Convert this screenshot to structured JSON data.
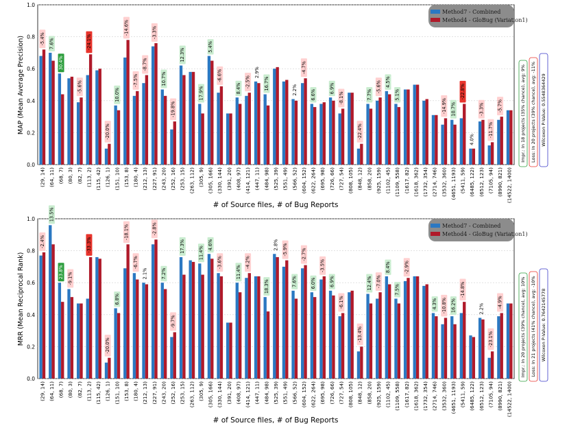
{
  "colors": {
    "method7": "#2b78c2",
    "method4": "#b01a2a",
    "pos_box": "#c9eccf",
    "pos_strong": "#2e9e3e",
    "neg_box": "#ffd0d0",
    "neg_strong": "#e8342c",
    "legend_bg": "#8c8c8c"
  },
  "xlabel": "# of Source files, # of Bug Reports",
  "legend": {
    "method7": "Method7 - Combined",
    "method4": "Method4 - GloBug (Variation1)"
  },
  "chart_data": [
    {
      "type": "bar",
      "ylabel": "MAP (Mean Average Precision)",
      "xlabel": "# of Source files, # of Bug Reports",
      "ylim": [
        0,
        1.0
      ],
      "yticks": [
        "0.0",
        "0.2",
        "0.4",
        "0.6",
        "0.8",
        "1.0"
      ],
      "categories": [
        "(29, 14)",
        "(64, 11)",
        "(68, 7)",
        "(80, 3)",
        "(82, 7)",
        "(113, 2)",
        "(115, 42)",
        "(126, 1)",
        "(151, 10)",
        "(153, 8)",
        "(180, 4)",
        "(212, 13)",
        "(227, 91)",
        "(243, 20)",
        "(252, 16)",
        "(253, 15)",
        "(263, 112)",
        "(305, 9)",
        "(305, 166)",
        "(330, 144)",
        "(391, 20)",
        "(408, 97)",
        "(414, 121)",
        "(447, 11)",
        "(484, 98)",
        "(525, 39)",
        "(551, 49)",
        "(566, 52)",
        "(604, 152)",
        "(622, 264)",
        "(695, 98)",
        "(726, 66)",
        "(727, 54)",
        "(808, 105)",
        "(848, 12)",
        "(858, 20)",
        "(925, 159)",
        "(1102, 45)",
        "(1109, 558)",
        "(1617, 82)",
        "(1618, 362)",
        "(1732, 354)",
        "(2714, 746)",
        "(3532, 360)",
        "(4651, 1193)",
        "(5411, 59)",
        "(6485, 122)",
        "(6512, 123)",
        "(7105, 94)",
        "(8990, 821)",
        "(14522, 1400)"
      ],
      "series": [
        {
          "name": "Method7 - Combined",
          "values": [
            0.68,
            0.7,
            0.57,
            0.54,
            0.39,
            0.56,
            0.59,
            0.1,
            0.37,
            0.67,
            0.43,
            0.51,
            0.74,
            0.47,
            0.22,
            0.62,
            0.58,
            0.38,
            0.68,
            0.45,
            0.32,
            0.42,
            0.43,
            0.52,
            0.44,
            0.6,
            0.52,
            0.41,
            0.51,
            0.38,
            0.38,
            0.42,
            0.32,
            0.45,
            0.1,
            0.38,
            0.4,
            0.46,
            0.38,
            0.47,
            0.5,
            0.4,
            0.31,
            0.25,
            0.28,
            0.29,
            0.1,
            0.27,
            0.12,
            0.28,
            0.34
          ]
        },
        {
          "name": "Method4 - GloBug (Variation1)",
          "values": [
            0.72,
            0.65,
            0.44,
            0.55,
            0.42,
            0.69,
            0.6,
            0.13,
            0.34,
            0.78,
            0.46,
            0.56,
            0.76,
            0.43,
            0.27,
            0.56,
            0.58,
            0.32,
            0.65,
            0.49,
            0.32,
            0.38,
            0.45,
            0.51,
            0.37,
            0.61,
            0.53,
            0.4,
            0.54,
            0.36,
            0.39,
            0.4,
            0.35,
            0.45,
            0.13,
            0.35,
            0.42,
            0.44,
            0.36,
            0.47,
            0.5,
            0.41,
            0.31,
            0.29,
            0.25,
            0.38,
            0.1,
            0.28,
            0.14,
            0.3,
            0.34
          ]
        }
      ],
      "annotations": [
        {
          "index": 0,
          "label": "-5.4%",
          "kind": "neg"
        },
        {
          "index": 1,
          "label": "7.6%",
          "kind": "pos"
        },
        {
          "index": 2,
          "label": "30.4%",
          "kind": "pos_strong"
        },
        {
          "index": 4,
          "label": "-5.6%",
          "kind": "neg"
        },
        {
          "index": 5,
          "label": "-24.1%",
          "kind": "neg_strong"
        },
        {
          "index": 7,
          "label": "-20.0%",
          "kind": "neg"
        },
        {
          "index": 8,
          "label": "10.0%",
          "kind": "pos"
        },
        {
          "index": 9,
          "label": "-14.6%",
          "kind": "neg"
        },
        {
          "index": 10,
          "label": "-7.5%",
          "kind": "neg"
        },
        {
          "index": 11,
          "label": "-8.7%",
          "kind": "neg"
        },
        {
          "index": 12,
          "label": "-3.3%",
          "kind": "neg"
        },
        {
          "index": 13,
          "label": "10.7%",
          "kind": "pos"
        },
        {
          "index": 14,
          "label": "-19.8%",
          "kind": "neg"
        },
        {
          "index": 15,
          "label": "12.3%",
          "kind": "pos"
        },
        {
          "index": 17,
          "label": "17.9%",
          "kind": "pos"
        },
        {
          "index": 18,
          "label": "5.4%",
          "kind": "pos"
        },
        {
          "index": 19,
          "label": "-6.6%",
          "kind": "neg"
        },
        {
          "index": 21,
          "label": "8.4%",
          "kind": "pos"
        },
        {
          "index": 22,
          "label": "-2.5%",
          "kind": "neg"
        },
        {
          "index": 23,
          "label": "2.9%",
          "kind": "plain"
        },
        {
          "index": 24,
          "label": "16.7%",
          "kind": "pos"
        },
        {
          "index": 27,
          "label": "2.2%",
          "kind": "plain"
        },
        {
          "index": 28,
          "label": "-4.7%",
          "kind": "neg"
        },
        {
          "index": 29,
          "label": "6.6%",
          "kind": "pos"
        },
        {
          "index": 31,
          "label": "6.9%",
          "kind": "pos"
        },
        {
          "index": 32,
          "label": "-8.1%",
          "kind": "neg"
        },
        {
          "index": 34,
          "label": "-22.4%",
          "kind": "neg"
        },
        {
          "index": 35,
          "label": "7.7%",
          "kind": "pos"
        },
        {
          "index": 36,
          "label": "-5.6%",
          "kind": "neg"
        },
        {
          "index": 37,
          "label": "4.5%",
          "kind": "pos"
        },
        {
          "index": 38,
          "label": "5.1%",
          "kind": "pos"
        },
        {
          "index": 43,
          "label": "-14.9%",
          "kind": "neg"
        },
        {
          "index": 44,
          "label": "10.7%",
          "kind": "pos"
        },
        {
          "index": 45,
          "label": "-22.8%",
          "kind": "neg_strong"
        },
        {
          "index": 46,
          "label": "4.0%",
          "kind": "plain"
        },
        {
          "index": 47,
          "label": "-3.3%",
          "kind": "neg"
        },
        {
          "index": 48,
          "label": "-11.7%",
          "kind": "neg"
        },
        {
          "index": 49,
          "label": "-5.7%",
          "kind": "neg"
        }
      ],
      "stats": {
        "impr": "Impr.: In 18 projects (35% chance), avg: 9%",
        "loss": "Loss: In 20 projects (39% chance), avg: -11%",
        "pvalue": "Wilcoxon P-Value: 0.5548364429"
      }
    },
    {
      "type": "bar",
      "ylabel": "MRR (Mean Reciprocal Rank)",
      "xlabel": "# of Source files, # of Bug Reports",
      "ylim": [
        0,
        1.0
      ],
      "yticks": [
        "0.0",
        "0.2",
        "0.4",
        "0.6",
        "0.8",
        "1.0"
      ],
      "categories": [
        "(29, 14)",
        "(64, 11)",
        "(68, 7)",
        "(80, 3)",
        "(82, 7)",
        "(113, 2)",
        "(115, 42)",
        "(126, 1)",
        "(151, 10)",
        "(153, 8)",
        "(180, 4)",
        "(212, 13)",
        "(227, 91)",
        "(243, 20)",
        "(252, 16)",
        "(253, 15)",
        "(263, 112)",
        "(305, 9)",
        "(305, 166)",
        "(330, 144)",
        "(391, 20)",
        "(408, 97)",
        "(414, 121)",
        "(447, 11)",
        "(484, 98)",
        "(525, 39)",
        "(551, 49)",
        "(566, 52)",
        "(604, 152)",
        "(622, 264)",
        "(695, 98)",
        "(726, 66)",
        "(727, 54)",
        "(808, 105)",
        "(848, 12)",
        "(858, 20)",
        "(925, 159)",
        "(1102, 45)",
        "(1109, 558)",
        "(1617, 82)",
        "(1618, 362)",
        "(1732, 354)",
        "(2714, 746)",
        "(3532, 360)",
        "(4651, 1193)",
        "(5411, 59)",
        "(6485, 122)",
        "(6512, 123)",
        "(7105, 94)",
        "(8990, 821)",
        "(14522, 1400)"
      ],
      "series": [
        {
          "name": "Method7 - Combined",
          "values": [
            0.77,
            0.96,
            0.6,
            0.56,
            0.47,
            0.5,
            0.76,
            0.1,
            0.44,
            0.69,
            0.66,
            0.6,
            0.84,
            0.6,
            0.26,
            0.76,
            0.74,
            0.72,
            0.78,
            0.66,
            0.35,
            0.6,
            0.63,
            0.64,
            0.51,
            0.78,
            0.7,
            0.55,
            0.69,
            0.54,
            0.62,
            0.55,
            0.39,
            0.54,
            0.17,
            0.53,
            0.5,
            0.64,
            0.5,
            0.61,
            0.64,
            0.58,
            0.41,
            0.34,
            0.39,
            0.41,
            0.27,
            0.38,
            0.13,
            0.39,
            0.47
          ]
        },
        {
          "name": "Method4 - GloBug (Variation1)",
          "values": [
            0.79,
            0.84,
            0.48,
            0.51,
            0.47,
            0.76,
            0.75,
            0.13,
            0.41,
            0.84,
            0.62,
            0.59,
            0.87,
            0.56,
            0.29,
            0.65,
            0.73,
            0.65,
            0.75,
            0.64,
            0.35,
            0.54,
            0.66,
            0.64,
            0.42,
            0.76,
            0.74,
            0.5,
            0.71,
            0.51,
            0.64,
            0.52,
            0.41,
            0.55,
            0.2,
            0.47,
            0.54,
            0.59,
            0.47,
            0.63,
            0.64,
            0.59,
            0.39,
            0.38,
            0.34,
            0.48,
            0.26,
            0.37,
            0.17,
            0.41,
            0.47
          ]
        }
      ],
      "annotations": [
        {
          "index": 0,
          "label": "-2.4%",
          "kind": "neg"
        },
        {
          "index": 1,
          "label": "13.5%",
          "kind": "pos"
        },
        {
          "index": 2,
          "label": "23.8%",
          "kind": "pos_strong"
        },
        {
          "index": 3,
          "label": "-9.1%",
          "kind": "neg"
        },
        {
          "index": 5,
          "label": "-33.3%",
          "kind": "neg_strong"
        },
        {
          "index": 7,
          "label": "-20.0%",
          "kind": "neg"
        },
        {
          "index": 8,
          "label": "6.8%",
          "kind": "pos"
        },
        {
          "index": 9,
          "label": "-18.1%",
          "kind": "neg"
        },
        {
          "index": 10,
          "label": "-6.7%",
          "kind": "neg"
        },
        {
          "index": 11,
          "label": "2.1%",
          "kind": "plain"
        },
        {
          "index": 12,
          "label": "-2.8%",
          "kind": "neg"
        },
        {
          "index": 13,
          "label": "7.2%",
          "kind": "pos"
        },
        {
          "index": 14,
          "label": "-9.7%",
          "kind": "neg"
        },
        {
          "index": 15,
          "label": "17.3%",
          "kind": "pos"
        },
        {
          "index": 17,
          "label": "11.4%",
          "kind": "pos"
        },
        {
          "index": 18,
          "label": "4.6%",
          "kind": "pos"
        },
        {
          "index": 19,
          "label": "-3.6%",
          "kind": "neg"
        },
        {
          "index": 21,
          "label": "11.4%",
          "kind": "pos"
        },
        {
          "index": 22,
          "label": "-4.2%",
          "kind": "neg"
        },
        {
          "index": 24,
          "label": "18.3%",
          "kind": "pos"
        },
        {
          "index": 25,
          "label": "2.8%",
          "kind": "plain"
        },
        {
          "index": 26,
          "label": "-5.9%",
          "kind": "neg"
        },
        {
          "index": 27,
          "label": "7.6%",
          "kind": "pos"
        },
        {
          "index": 28,
          "label": "-2.7%",
          "kind": "neg"
        },
        {
          "index": 29,
          "label": "6.0%",
          "kind": "pos"
        },
        {
          "index": 30,
          "label": "-3.5%",
          "kind": "neg"
        },
        {
          "index": 31,
          "label": "6.9%",
          "kind": "pos"
        },
        {
          "index": 32,
          "label": "-6.1%",
          "kind": "neg"
        },
        {
          "index": 34,
          "label": "-13.4%",
          "kind": "neg"
        },
        {
          "index": 35,
          "label": "12.4%",
          "kind": "pos"
        },
        {
          "index": 36,
          "label": "-7.0%",
          "kind": "neg"
        },
        {
          "index": 37,
          "label": "8.4%",
          "kind": "pos"
        },
        {
          "index": 38,
          "label": "7.5%",
          "kind": "pos"
        },
        {
          "index": 39,
          "label": "-2.9%",
          "kind": "neg"
        },
        {
          "index": 42,
          "label": "4.3%",
          "kind": "pos"
        },
        {
          "index": 43,
          "label": "-10.8%",
          "kind": "neg"
        },
        {
          "index": 44,
          "label": "16.2%",
          "kind": "pos"
        },
        {
          "index": 45,
          "label": "-14.8%",
          "kind": "neg"
        },
        {
          "index": 47,
          "label": "2.2%",
          "kind": "plain"
        },
        {
          "index": 48,
          "label": "-23.1%",
          "kind": "neg"
        },
        {
          "index": 49,
          "label": "-4.9%",
          "kind": "neg"
        }
      ],
      "stats": {
        "impr": "Impr.: In 20 projects (39% chance), avg: 10%",
        "loss": "Loss: In 21 projects (41% chance), avg: -10%",
        "pvalue": "Wilcoxon P-Value: 0.7642145778"
      }
    }
  ]
}
